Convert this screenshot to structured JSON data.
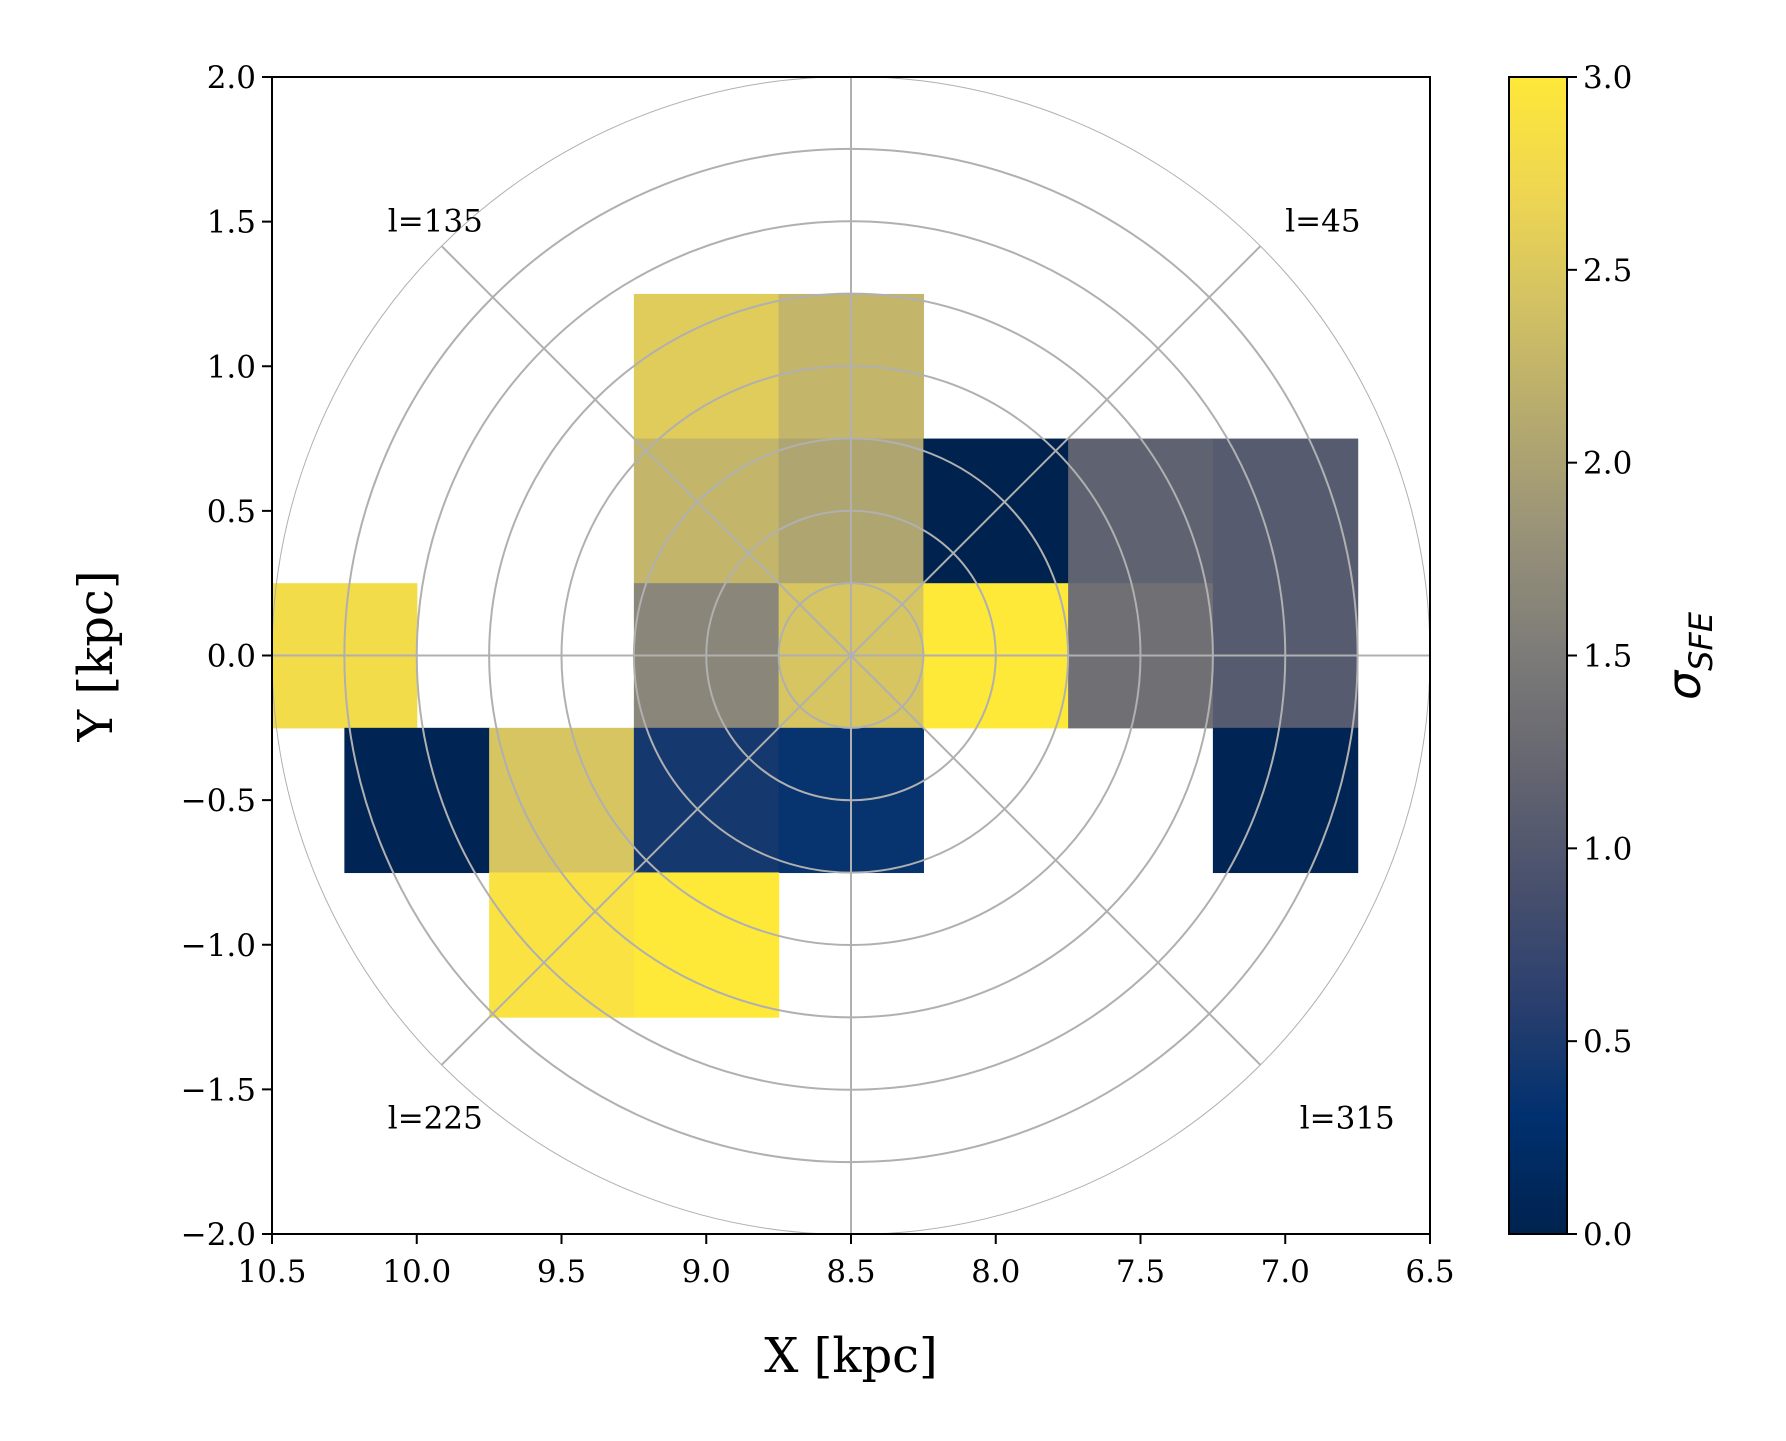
{
  "chart_data": {
    "type": "heatmap",
    "xlabel": "X [kpc]",
    "ylabel": "Y [kpc]",
    "xlim": [
      10.5,
      6.5
    ],
    "ylim": [
      -2.0,
      2.0
    ],
    "x_ticks": [
      "10.5",
      "10.0",
      "9.5",
      "9.0",
      "8.5",
      "8.0",
      "7.5",
      "7.0",
      "6.5"
    ],
    "y_ticks": [
      "−2.0",
      "−1.5",
      "−1.0",
      "−0.5",
      "0.0",
      "0.5",
      "1.0",
      "1.5",
      "2.0"
    ],
    "bin_size": 0.5,
    "cells": [
      {
        "x": 9.0,
        "y": 1.0,
        "value": 2.55
      },
      {
        "x": 8.5,
        "y": 1.0,
        "value": 2.25
      },
      {
        "x": 9.0,
        "y": 0.5,
        "value": 2.25
      },
      {
        "x": 8.5,
        "y": 0.5,
        "value": 2.05
      },
      {
        "x": 8.0,
        "y": 0.5,
        "value": 0.0
      },
      {
        "x": 7.5,
        "y": 0.5,
        "value": 1.15
      },
      {
        "x": 7.0,
        "y": 0.5,
        "value": 1.05
      },
      {
        "x": 10.25,
        "y": 0.0,
        "value": 2.8
      },
      {
        "x": 9.0,
        "y": 0.0,
        "value": 1.65
      },
      {
        "x": 8.5,
        "y": 0.0,
        "value": 2.45
      },
      {
        "x": 8.0,
        "y": 0.0,
        "value": 3.0
      },
      {
        "x": 7.5,
        "y": 0.0,
        "value": 1.35
      },
      {
        "x": 7.0,
        "y": 0.0,
        "value": 1.05
      },
      {
        "x": 10.0,
        "y": -0.5,
        "value": 0.05
      },
      {
        "x": 9.5,
        "y": -0.5,
        "value": 2.45
      },
      {
        "x": 9.0,
        "y": -0.5,
        "value": 0.45
      },
      {
        "x": 8.5,
        "y": -0.5,
        "value": 0.35
      },
      {
        "x": 7.0,
        "y": -0.5,
        "value": 0.05
      },
      {
        "x": 9.5,
        "y": -1.0,
        "value": 2.9
      },
      {
        "x": 9.0,
        "y": -1.0,
        "value": 3.0
      }
    ],
    "colorbar": {
      "label_base": "σ",
      "label_sub": "SFE",
      "range": [
        0.0,
        3.0
      ],
      "ticks": [
        "0.0",
        "0.5",
        "1.0",
        "1.5",
        "2.0",
        "2.5",
        "3.0"
      ],
      "colormap": "cividis"
    },
    "polar_grid": {
      "center": [
        8.5,
        0.0
      ],
      "radii_kpc": [
        0.25,
        0.5,
        0.75,
        1.0,
        1.25,
        1.5,
        1.75,
        2.0
      ],
      "spoke_angles_deg": [
        0,
        45,
        90,
        135,
        180,
        225,
        270,
        315
      ]
    },
    "annotations": [
      {
        "text": "l=135",
        "x": 10.1,
        "y": 1.5
      },
      {
        "text": "l=45",
        "x": 7.0,
        "y": 1.5
      },
      {
        "text": "l=225",
        "x": 10.1,
        "y": -1.6
      },
      {
        "text": "l=315",
        "x": 6.95,
        "y": -1.6
      }
    ]
  },
  "colors": {
    "grid": "#b0b0b0",
    "axis": "#000000"
  }
}
